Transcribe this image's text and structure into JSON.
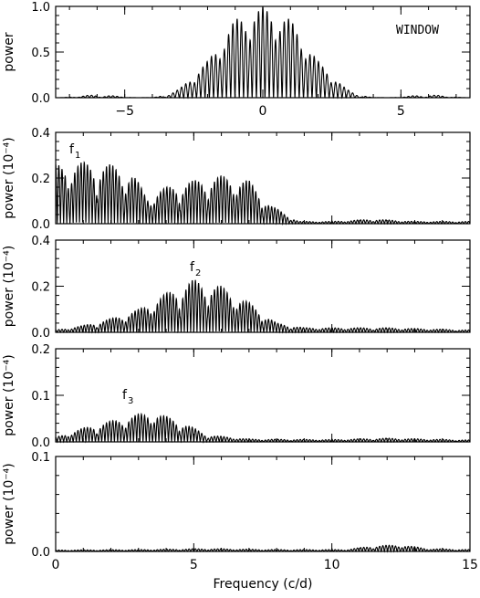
{
  "chart_data": [
    {
      "type": "line",
      "panel": "window",
      "xlim": [
        -7.5,
        7.5
      ],
      "ylim": [
        0,
        1.0
      ],
      "xticks": [
        -5,
        0,
        5
      ],
      "xtick_labels": [
        "−5",
        "0",
        "5"
      ],
      "yticks": [
        0,
        0.5,
        1.0
      ],
      "ytick_labels": [
        "0.0",
        "0.5",
        "1.0"
      ],
      "ylabel": "power",
      "annotation": "WINDOW",
      "series_kind": "window",
      "envelope": [
        {
          "x": -3.6,
          "y": 0.0
        },
        {
          "x": -3.0,
          "y": 0.1
        },
        {
          "x": -2.0,
          "y": 0.4
        },
        {
          "x": -1.0,
          "y": 0.86
        },
        {
          "x": 0.0,
          "y": 1.0
        },
        {
          "x": 1.0,
          "y": 0.86
        },
        {
          "x": 2.0,
          "y": 0.4
        },
        {
          "x": 3.0,
          "y": 0.1
        },
        {
          "x": 3.6,
          "y": 0.0
        }
      ]
    },
    {
      "type": "line",
      "panel": "f1",
      "xlim": [
        0,
        15
      ],
      "ylim": [
        0,
        0.4
      ],
      "xticks": [
        0,
        5,
        10,
        15
      ],
      "yticks": [
        0,
        0.2,
        0.4
      ],
      "ytick_labels": [
        "0.0",
        "0.2",
        "0.4"
      ],
      "ylabel": "power (10⁻⁴)",
      "annotation": "f",
      "annotation_sub": "1",
      "envelope": [
        {
          "x": 0.0,
          "y": 0.26
        },
        {
          "x": 1.0,
          "y": 0.27
        },
        {
          "x": 2.0,
          "y": 0.26
        },
        {
          "x": 2.8,
          "y": 0.22
        },
        {
          "x": 3.3,
          "y": 0.12
        },
        {
          "x": 4.0,
          "y": 0.16
        },
        {
          "x": 5.0,
          "y": 0.19
        },
        {
          "x": 6.0,
          "y": 0.21
        },
        {
          "x": 7.0,
          "y": 0.19
        },
        {
          "x": 7.8,
          "y": 0.08
        },
        {
          "x": 8.8,
          "y": 0.01
        },
        {
          "x": 10.0,
          "y": 0.01
        },
        {
          "x": 11.5,
          "y": 0.02
        },
        {
          "x": 13.0,
          "y": 0.01
        },
        {
          "x": 15.0,
          "y": 0.01
        }
      ]
    },
    {
      "type": "line",
      "panel": "f2",
      "xlim": [
        0,
        15
      ],
      "ylim": [
        0,
        0.4
      ],
      "xticks": [
        0,
        5,
        10,
        15
      ],
      "yticks": [
        0,
        0.2,
        0.4
      ],
      "ytick_labels": [
        "0.0",
        "0.2",
        "0.4"
      ],
      "ylabel": "power (10⁻⁴)",
      "annotation": "f",
      "annotation_sub": "2",
      "envelope": [
        {
          "x": 0.0,
          "y": 0.01
        },
        {
          "x": 1.0,
          "y": 0.03
        },
        {
          "x": 2.0,
          "y": 0.06
        },
        {
          "x": 3.0,
          "y": 0.1
        },
        {
          "x": 4.0,
          "y": 0.17
        },
        {
          "x": 5.0,
          "y": 0.23
        },
        {
          "x": 6.0,
          "y": 0.2
        },
        {
          "x": 7.0,
          "y": 0.13
        },
        {
          "x": 8.0,
          "y": 0.04
        },
        {
          "x": 9.0,
          "y": 0.02
        },
        {
          "x": 12.0,
          "y": 0.02
        },
        {
          "x": 15.0,
          "y": 0.01
        }
      ]
    },
    {
      "type": "line",
      "panel": "f3",
      "xlim": [
        0,
        15
      ],
      "ylim": [
        0,
        0.2
      ],
      "xticks": [
        0,
        5,
        10,
        15
      ],
      "yticks": [
        0,
        0.1,
        0.2
      ],
      "ytick_labels": [
        "0.0",
        "0.1",
        "0.2"
      ],
      "ylabel": "power (10⁻⁴)",
      "annotation": "f",
      "annotation_sub": "3",
      "envelope": [
        {
          "x": 0.0,
          "y": 0.01
        },
        {
          "x": 1.0,
          "y": 0.03
        },
        {
          "x": 2.0,
          "y": 0.045
        },
        {
          "x": 3.0,
          "y": 0.06
        },
        {
          "x": 3.5,
          "y": 0.065
        },
        {
          "x": 4.5,
          "y": 0.045
        },
        {
          "x": 5.5,
          "y": 0.015
        },
        {
          "x": 7.0,
          "y": 0.006
        },
        {
          "x": 10.0,
          "y": 0.005
        },
        {
          "x": 12.0,
          "y": 0.008
        },
        {
          "x": 15.0,
          "y": 0.004
        }
      ]
    },
    {
      "type": "line",
      "panel": "residual",
      "xlim": [
        0,
        15
      ],
      "ylim": [
        0,
        0.1
      ],
      "xticks": [
        0,
        5,
        10,
        15
      ],
      "xtick_labels": [
        "0",
        "5",
        "10",
        "15"
      ],
      "yticks": [
        0,
        0.1
      ],
      "ytick_labels": [
        "0.0",
        "0.1"
      ],
      "ylabel": "power (10⁻⁴)",
      "xlabel": "Frequency (c/d)",
      "envelope": [
        {
          "x": 0.0,
          "y": 0.0015
        },
        {
          "x": 3.0,
          "y": 0.002
        },
        {
          "x": 5.5,
          "y": 0.003
        },
        {
          "x": 8.0,
          "y": 0.002
        },
        {
          "x": 10.5,
          "y": 0.002
        },
        {
          "x": 11.5,
          "y": 0.006
        },
        {
          "x": 12.5,
          "y": 0.007
        },
        {
          "x": 13.5,
          "y": 0.003
        },
        {
          "x": 15.0,
          "y": 0.002
        }
      ]
    }
  ]
}
